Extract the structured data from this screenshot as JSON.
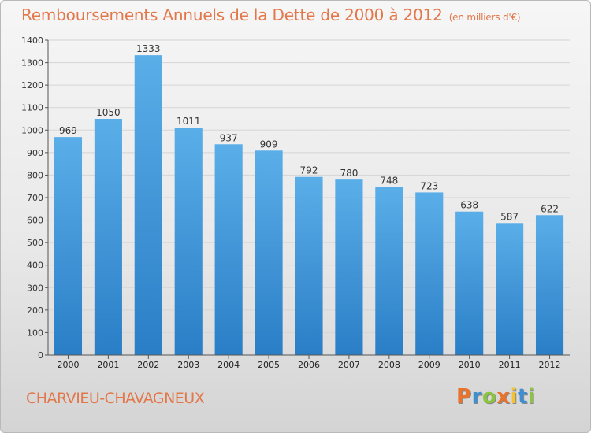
{
  "header": {
    "title": "Remboursements Annuels de la Dette de 2000 à 2012",
    "unit": "(en milliers d'€)"
  },
  "footer": {
    "commune": "CHARVIEU-CHAVAGNEUX",
    "logo_text": "Proxiti",
    "logo_colors": [
      "#e8732d",
      "#3d8fd1",
      "#8bc53f",
      "#e8732d",
      "#f1c232",
      "#3d8fd1",
      "#8bc53f"
    ]
  },
  "colors": {
    "bar_top": "#5aaee8",
    "bar_bottom": "#2a7ec6",
    "grid": "#d5d5d5",
    "title": "#e2774a"
  },
  "chart_data": {
    "type": "bar",
    "categories": [
      "2000",
      "2001",
      "2002",
      "2003",
      "2004",
      "2005",
      "2006",
      "2007",
      "2008",
      "2009",
      "2010",
      "2011",
      "2012"
    ],
    "values": [
      969,
      1050,
      1333,
      1011,
      937,
      909,
      792,
      780,
      748,
      723,
      638,
      587,
      622
    ],
    "ylim": [
      0,
      1400
    ],
    "yticks": [
      0,
      100,
      200,
      300,
      400,
      500,
      600,
      700,
      800,
      900,
      1000,
      1100,
      1200,
      1300,
      1400
    ],
    "grid": true,
    "data_labels": true
  }
}
